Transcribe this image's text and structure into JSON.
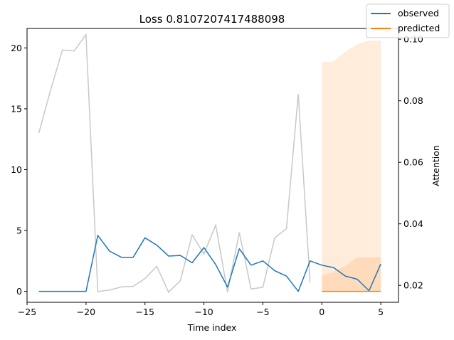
{
  "chart_data": {
    "type": "line",
    "title": "Loss 0.8107207417488098",
    "xlabel": "Time index",
    "ylabel": "",
    "y2label": "Attention",
    "xlim": [
      -25,
      6.5
    ],
    "ylim": [
      -0.9,
      21.6
    ],
    "y2lim": [
      0.0145,
      0.1035
    ],
    "x_ticks": [
      -25,
      -20,
      -15,
      -10,
      -5,
      0,
      5
    ],
    "y_ticks": [
      0,
      5,
      10,
      15,
      20
    ],
    "y2_ticks": [
      0.02,
      0.04,
      0.06,
      0.08,
      0.1
    ],
    "legend": {
      "position": "top-right",
      "entries": [
        "observed",
        "predicted"
      ]
    },
    "colors": {
      "observed": "#1f77b4",
      "predicted": "#ff7f0e",
      "attention": "#c8c8c8",
      "quantile_band": "#ff7f0e"
    },
    "series": [
      {
        "name": "observed",
        "x": [
          -24,
          -23,
          -22,
          -21,
          -20,
          -19,
          -18,
          -17,
          -16,
          -15,
          -14,
          -13,
          -12,
          -11,
          -10,
          -9,
          -8,
          -7,
          -6,
          -5,
          -4,
          -3,
          -2,
          -1,
          0,
          1,
          2,
          3,
          4,
          5
        ],
        "y": [
          0,
          0,
          0,
          0,
          0,
          4.6,
          3.3,
          2.8,
          2.8,
          4.4,
          3.8,
          2.9,
          2.95,
          2.35,
          3.6,
          2.2,
          0.35,
          3.5,
          2.15,
          2.5,
          1.7,
          1.25,
          0,
          2.5,
          2.15,
          1.95,
          1.25,
          1.0,
          0.05,
          2.25
        ]
      },
      {
        "name": "predicted",
        "x": [
          0,
          1,
          2,
          3,
          4,
          5
        ],
        "y": [
          0,
          0,
          0,
          0,
          0,
          0
        ]
      }
    ],
    "attention": {
      "axis": "right",
      "x": [
        -24,
        -23,
        -22,
        -21,
        -20,
        -19,
        -18,
        -17,
        -16,
        -15,
        -14,
        -13,
        -12,
        -11,
        -10,
        -9,
        -8,
        -7,
        -6,
        -5,
        -4,
        -3,
        -2,
        -1
      ],
      "y": [
        0.0695,
        0.0835,
        0.0965,
        0.0962,
        0.1015,
        0.018,
        0.0185,
        0.0195,
        0.0197,
        0.0222,
        0.0262,
        0.0178,
        0.0215,
        0.0364,
        0.0302,
        0.0396,
        0.0178,
        0.0372,
        0.0188,
        0.0194,
        0.0354,
        0.0385,
        0.0822,
        0.021
      ]
    },
    "quantile_bands": [
      {
        "x": [
          0,
          1,
          2,
          3,
          4,
          5
        ],
        "lower": [
          0,
          0,
          0,
          0,
          0,
          0
        ],
        "upper": [
          18.8,
          18.9,
          19.7,
          20.3,
          20.6,
          20.6
        ],
        "opacity": 0.15
      },
      {
        "x": [
          0,
          1,
          2,
          3,
          4,
          5
        ],
        "lower": [
          0,
          0,
          0,
          0,
          0,
          0
        ],
        "upper": [
          1.3,
          1.6,
          2.1,
          2.8,
          2.8,
          2.8
        ],
        "opacity": 0.15
      }
    ]
  }
}
